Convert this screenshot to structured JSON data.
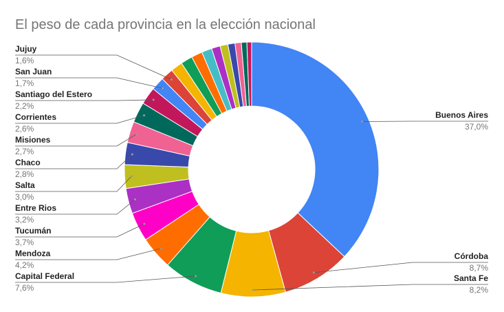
{
  "chart_data": {
    "type": "donut",
    "title": "El peso de cada provincia en la elección nacional",
    "categories": [
      "Buenos Aires",
      "Córdoba",
      "Santa Fe",
      "Capital Federal",
      "Mendoza",
      "Tucumán",
      "Entre Rios",
      "Salta",
      "Chaco",
      "Misiones",
      "Corrientes",
      "Santiago del Estero",
      "San Juan",
      "Jujuy",
      null,
      null,
      null,
      null,
      null,
      null,
      null,
      null,
      null,
      null
    ],
    "values": [
      37.0,
      8.7,
      8.2,
      7.6,
      4.2,
      3.7,
      3.2,
      3.0,
      2.8,
      2.7,
      2.6,
      2.2,
      1.7,
      1.6,
      1.5,
      1.5,
      1.4,
      1.3,
      1.1,
      1.0,
      0.9,
      0.8,
      0.7,
      0.6
    ],
    "value_labels": [
      "37,0%",
      "8,7%",
      "8,2%",
      "7,6%",
      "4,2%",
      "3,7%",
      "3,2%",
      "3,0%",
      "2,8%",
      "2,7%",
      "2,6%",
      "2,2%",
      "1,7%",
      "1,6%",
      null,
      null,
      null,
      null,
      null,
      null,
      null,
      null,
      null,
      null
    ],
    "colors": [
      "#4285f4",
      "#db4437",
      "#f4b400",
      "#0f9d58",
      "#ff6d01",
      "#ff00c6",
      "#ab30c4",
      "#bfbf1f",
      "#3949ab",
      "#f06292",
      "#00695c",
      "#c2185b",
      "#4285f4",
      "#db4437",
      "#f4b400",
      "#0f9d58",
      "#ff6d01",
      "#46bdc6",
      "#ab30c4",
      "#bfbf1f",
      "#3949ab",
      "#f06292",
      "#00695c",
      "#c2185b"
    ]
  }
}
